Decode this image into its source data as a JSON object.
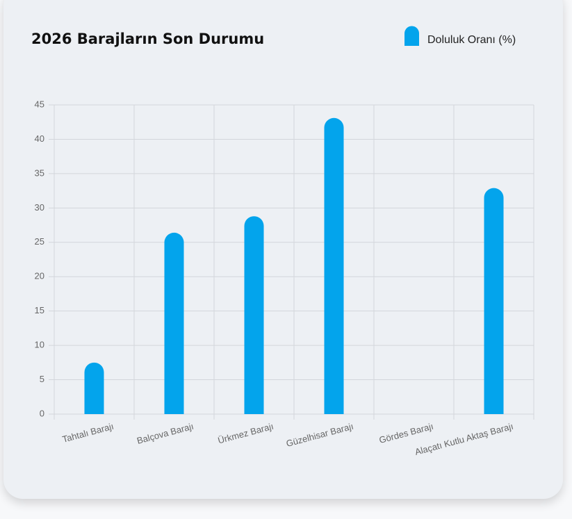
{
  "chart_data": {
    "type": "bar",
    "title": "2026 Barajların Son Durumu",
    "categories": [
      "Tahtalı Barajı",
      "Balçova Barajı",
      "Ürkmez Barajı",
      "Güzelhisar Barajı",
      "Gördes Barajı",
      "Alaçatı Kutlu Aktaş Barajı"
    ],
    "series": [
      {
        "name": "Doluluk Oranı (%)",
        "color": "#03a4ec",
        "values": [
          7.5,
          26.4,
          28.8,
          43.1,
          0,
          32.9
        ]
      }
    ],
    "ylim": [
      0,
      45
    ],
    "yticks": [
      0,
      5,
      10,
      15,
      20,
      25,
      30,
      35,
      40,
      45
    ],
    "grid": true,
    "legend": "top-right"
  }
}
